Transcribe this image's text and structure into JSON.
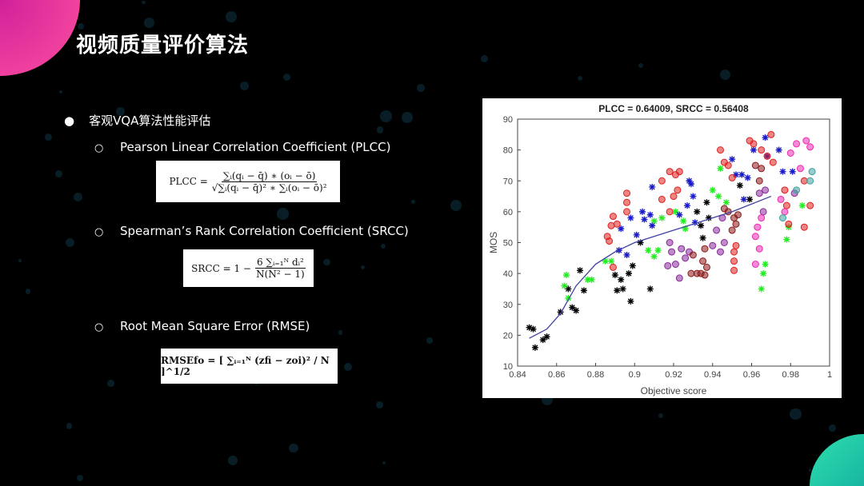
{
  "slide": {
    "title": "视频质量评价算法",
    "bullet": "客观VQA算法性能评估",
    "items": [
      {
        "label": "Pearson Linear Correlation Coefficient (PLCC)",
        "formula": {
          "lhs": "PLCC =",
          "num": "∑ᵢ(qᵢ − q̄) ∗ (oᵢ − ō)",
          "den": "√∑ᵢ(qᵢ − q̄)² ∗ ∑ᵢ(oᵢ − ō)²"
        }
      },
      {
        "label": "Spearman’s Rank Correlation Coefficient (SRCC)",
        "formula": {
          "lhs": "SRCC = 1 −",
          "num": "6 ∑ᵢ₌₁ᴺ dᵢ²",
          "den": "N(N² − 1)"
        }
      },
      {
        "label": "Root Mean Square Error (RMSE)",
        "formula": {
          "text": "RMSEfo = [ ∑ᵢ₌₁ᴺ (zfi − zoi)² / N ]^1/2"
        }
      }
    ],
    "colors": {
      "accent_pink": "#ff4fa0",
      "accent_teal": "#2fe0b0"
    }
  },
  "chart_data": {
    "type": "scatter",
    "title": "PLCC = 0.64009, SRCC = 0.56408",
    "xlabel": "Objective score",
    "ylabel": "MOS",
    "xlim": [
      0.84,
      1
    ],
    "ylim": [
      10,
      90
    ],
    "xticks": [
      "0.84",
      "0.86",
      "0.88",
      "0.9",
      "0.92",
      "0.94",
      "0.96",
      "0.98",
      "1"
    ],
    "yticks": [
      "10",
      "20",
      "30",
      "40",
      "50",
      "60",
      "70",
      "80",
      "90"
    ],
    "grid": false,
    "fit_curve": [
      [
        0.846,
        19
      ],
      [
        0.855,
        22
      ],
      [
        0.862,
        27
      ],
      [
        0.87,
        36
      ],
      [
        0.88,
        43
      ],
      [
        0.89,
        47
      ],
      [
        0.9,
        50
      ],
      [
        0.91,
        52
      ],
      [
        0.92,
        54
      ],
      [
        0.93,
        56
      ],
      [
        0.94,
        58
      ],
      [
        0.95,
        60
      ],
      [
        0.96,
        62.5
      ],
      [
        0.97,
        65
      ]
    ],
    "fit_color": "#4040a0",
    "series": [
      {
        "color": "#000000",
        "marker": "star",
        "points": [
          [
            0.846,
            22.5
          ],
          [
            0.848,
            22
          ],
          [
            0.849,
            16
          ],
          [
            0.853,
            18.5
          ],
          [
            0.855,
            19.5
          ],
          [
            0.862,
            27.5
          ],
          [
            0.866,
            35
          ],
          [
            0.868,
            29
          ],
          [
            0.87,
            28
          ],
          [
            0.872,
            41
          ],
          [
            0.874,
            34.5
          ],
          [
            0.89,
            39.5
          ],
          [
            0.891,
            34.5
          ],
          [
            0.893,
            38
          ],
          [
            0.894,
            35
          ],
          [
            0.897,
            40
          ],
          [
            0.898,
            31
          ],
          [
            0.899,
            42.5
          ],
          [
            0.903,
            50
          ],
          [
            0.908,
            35
          ],
          [
            0.932,
            60
          ],
          [
            0.934,
            55.5
          ],
          [
            0.935,
            51.5
          ],
          [
            0.937,
            63
          ],
          [
            0.938,
            58
          ],
          [
            0.954,
            68.5
          ],
          [
            0.959,
            64
          ]
        ]
      },
      {
        "color": "#22ee22",
        "marker": "star",
        "points": [
          [
            0.864,
            36
          ],
          [
            0.865,
            39.5
          ],
          [
            0.866,
            32
          ],
          [
            0.876,
            38
          ],
          [
            0.878,
            38
          ],
          [
            0.885,
            44
          ],
          [
            0.888,
            44
          ],
          [
            0.907,
            47.5
          ],
          [
            0.91,
            45.5
          ],
          [
            0.912,
            47.5
          ],
          [
            0.91,
            57
          ],
          [
            0.914,
            58
          ],
          [
            0.921,
            60
          ],
          [
            0.925,
            57
          ],
          [
            0.926,
            54.5
          ],
          [
            0.94,
            67
          ],
          [
            0.943,
            65
          ],
          [
            0.944,
            74
          ],
          [
            0.947,
            63
          ],
          [
            0.965,
            35
          ],
          [
            0.966,
            40
          ],
          [
            0.967,
            43
          ],
          [
            0.978,
            51
          ],
          [
            0.979,
            55
          ],
          [
            0.986,
            62
          ]
        ]
      },
      {
        "color": "#1a1acc",
        "marker": "star",
        "points": [
          [
            0.892,
            47.5
          ],
          [
            0.893,
            54.5
          ],
          [
            0.896,
            46
          ],
          [
            0.898,
            58
          ],
          [
            0.901,
            52.5
          ],
          [
            0.904,
            60
          ],
          [
            0.905,
            57.5
          ],
          [
            0.908,
            59
          ],
          [
            0.909,
            55.5
          ],
          [
            0.909,
            68
          ],
          [
            0.923,
            59
          ],
          [
            0.928,
            70
          ],
          [
            0.929,
            69
          ],
          [
            0.93,
            65
          ],
          [
            0.931,
            56.5
          ],
          [
            0.927,
            62
          ],
          [
            0.95,
            77
          ],
          [
            0.952,
            72
          ],
          [
            0.955,
            72
          ],
          [
            0.956,
            64
          ],
          [
            0.958,
            71
          ],
          [
            0.961,
            80
          ],
          [
            0.967,
            84
          ],
          [
            0.968,
            78
          ],
          [
            0.974,
            80
          ],
          [
            0.976,
            73
          ],
          [
            0.981,
            73
          ]
        ]
      },
      {
        "color": "#e02020",
        "marker": "circle",
        "points": [
          [
            0.886,
            52
          ],
          [
            0.887,
            50.5
          ],
          [
            0.888,
            55.5
          ],
          [
            0.889,
            58.5
          ],
          [
            0.891,
            56
          ],
          [
            0.896,
            66
          ],
          [
            0.896,
            63
          ],
          [
            0.896,
            60
          ],
          [
            0.889,
            42
          ],
          [
            0.914,
            70
          ],
          [
            0.914,
            64
          ],
          [
            0.918,
            73
          ],
          [
            0.918,
            60
          ],
          [
            0.92,
            65
          ],
          [
            0.921,
            72
          ],
          [
            0.922,
            67
          ],
          [
            0.923,
            73
          ],
          [
            0.944,
            80
          ],
          [
            0.946,
            76
          ],
          [
            0.948,
            75
          ],
          [
            0.95,
            71
          ],
          [
            0.951,
            47
          ],
          [
            0.951,
            44
          ],
          [
            0.951,
            41
          ],
          [
            0.952,
            49
          ],
          [
            0.959,
            83
          ],
          [
            0.961,
            82
          ],
          [
            0.965,
            80
          ],
          [
            0.968,
            78
          ],
          [
            0.97,
            85
          ],
          [
            0.971,
            76
          ],
          [
            0.977,
            67
          ],
          [
            0.978,
            62
          ],
          [
            0.979,
            56
          ],
          [
            0.987,
            70
          ],
          [
            0.987,
            55
          ],
          [
            0.99,
            62
          ]
        ]
      },
      {
        "color": "#8a2a9a",
        "marker": "circle",
        "points": [
          [
            0.917,
            42.5
          ],
          [
            0.918,
            50
          ],
          [
            0.919,
            47
          ],
          [
            0.921,
            43
          ],
          [
            0.923,
            38.5
          ],
          [
            0.924,
            48
          ],
          [
            0.926,
            45
          ],
          [
            0.928,
            47
          ],
          [
            0.94,
            49
          ],
          [
            0.942,
            54
          ],
          [
            0.944,
            47
          ],
          [
            0.945,
            58
          ],
          [
            0.946,
            50
          ],
          [
            0.964,
            66
          ],
          [
            0.966,
            60
          ],
          [
            0.967,
            67
          ],
          [
            0.982,
            66
          ]
        ]
      },
      {
        "color": "#8a1a1a",
        "marker": "circle",
        "points": [
          [
            0.93,
            46
          ],
          [
            0.932,
            40
          ],
          [
            0.934,
            40
          ],
          [
            0.935,
            44
          ],
          [
            0.936,
            48
          ],
          [
            0.936,
            39.5
          ],
          [
            0.937,
            42
          ],
          [
            0.929,
            40
          ],
          [
            0.946,
            61
          ],
          [
            0.948,
            60
          ],
          [
            0.95,
            54
          ],
          [
            0.951,
            58
          ],
          [
            0.952,
            56
          ],
          [
            0.953,
            59
          ],
          [
            0.962,
            75
          ],
          [
            0.964,
            70
          ],
          [
            0.965,
            74
          ]
        ]
      },
      {
        "color": "#ee2ab0",
        "marker": "circle",
        "points": [
          [
            0.962,
            52
          ],
          [
            0.963,
            55
          ],
          [
            0.964,
            48
          ],
          [
            0.965,
            58
          ],
          [
            0.962,
            43
          ],
          [
            0.975,
            64
          ],
          [
            0.977,
            60
          ],
          [
            0.98,
            79
          ],
          [
            0.983,
            82
          ],
          [
            0.985,
            74
          ],
          [
            0.988,
            83
          ],
          [
            0.99,
            81
          ]
        ]
      },
      {
        "color": "#40a0a0",
        "marker": "circle",
        "points": [
          [
            0.976,
            58
          ],
          [
            0.983,
            67
          ],
          [
            0.99,
            70
          ],
          [
            0.991,
            73
          ]
        ]
      }
    ]
  }
}
